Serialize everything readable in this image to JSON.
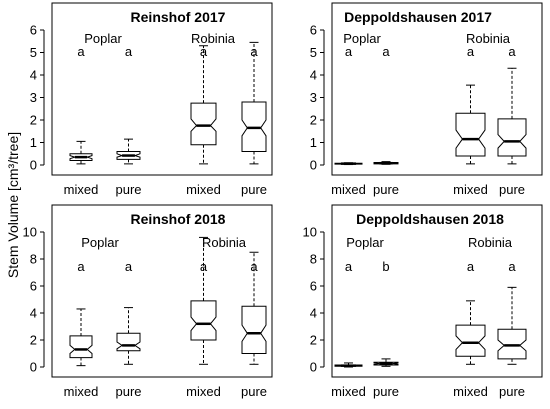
{
  "figure": {
    "ylabel": "Stem Volume [cm³/tree]"
  },
  "chart_data": [
    {
      "type": "box",
      "title": "Reinshof 2017",
      "ylabel": "Stem Volume [cm³/tree]",
      "ylim": [
        0,
        6
      ],
      "yticks": [
        "0",
        "1",
        "2",
        "3",
        "4",
        "5",
        "6"
      ],
      "group_labels": [
        "Poplar",
        "Robinia"
      ],
      "categories": [
        "mixed",
        "pure",
        "mixed",
        "pure"
      ],
      "series": [
        {
          "group": "Poplar",
          "category": "mixed",
          "whisker_low": 0.05,
          "q1": 0.2,
          "median": 0.35,
          "q3": 0.5,
          "whisker_high": 1.05,
          "notch_low": 0.28,
          "notch_high": 0.42,
          "letter": "a"
        },
        {
          "group": "Poplar",
          "category": "pure",
          "whisker_low": 0.05,
          "q1": 0.25,
          "median": 0.42,
          "q3": 0.6,
          "whisker_high": 1.15,
          "notch_low": 0.35,
          "notch_high": 0.5,
          "letter": "a"
        },
        {
          "group": "Robinia",
          "category": "mixed",
          "whisker_low": 0.05,
          "q1": 0.9,
          "median": 1.75,
          "q3": 2.75,
          "whisker_high": 5.3,
          "notch_low": 1.5,
          "notch_high": 2.05,
          "letter": "a"
        },
        {
          "group": "Robinia",
          "category": "pure",
          "whisker_low": 0.05,
          "q1": 0.6,
          "median": 1.65,
          "q3": 2.8,
          "whisker_high": 5.45,
          "notch_low": 1.3,
          "notch_high": 2.0,
          "letter": "a"
        }
      ]
    },
    {
      "type": "box",
      "title": "Deppoldshausen 2017",
      "ylim": [
        0,
        6
      ],
      "yticks": [
        "0",
        "1",
        "2",
        "3",
        "4",
        "5",
        "6"
      ],
      "group_labels": [
        "Poplar",
        "Robinia"
      ],
      "categories": [
        "mixed",
        "pure",
        "mixed",
        "pure"
      ],
      "series": [
        {
          "group": "Poplar",
          "category": "mixed",
          "whisker_low": 0.02,
          "q1": 0.04,
          "median": 0.06,
          "q3": 0.08,
          "whisker_high": 0.1,
          "notch_low": 0.05,
          "notch_high": 0.07,
          "letter": "a"
        },
        {
          "group": "Poplar",
          "category": "pure",
          "whisker_low": 0.03,
          "q1": 0.05,
          "median": 0.08,
          "q3": 0.11,
          "whisker_high": 0.15,
          "notch_low": 0.06,
          "notch_high": 0.1,
          "letter": "a"
        },
        {
          "group": "Robinia",
          "category": "mixed",
          "whisker_low": 0.05,
          "q1": 0.4,
          "median": 1.15,
          "q3": 2.3,
          "whisker_high": 3.55,
          "notch_low": 0.75,
          "notch_high": 1.55,
          "letter": "a"
        },
        {
          "group": "Robinia",
          "category": "pure",
          "whisker_low": 0.05,
          "q1": 0.4,
          "median": 1.05,
          "q3": 2.05,
          "whisker_high": 4.3,
          "notch_low": 0.75,
          "notch_high": 1.35,
          "letter": "a"
        }
      ]
    },
    {
      "type": "box",
      "title": "Reinshof 2018",
      "ylim": [
        0,
        10
      ],
      "yticks": [
        "0",
        "2",
        "4",
        "6",
        "8",
        "10"
      ],
      "group_labels": [
        "Poplar",
        "Robinia"
      ],
      "categories": [
        "mixed",
        "pure",
        "mixed",
        "pure"
      ],
      "series": [
        {
          "group": "Poplar",
          "category": "mixed",
          "whisker_low": 0.1,
          "q1": 0.7,
          "median": 1.3,
          "q3": 2.3,
          "whisker_high": 4.3,
          "notch_low": 1.0,
          "notch_high": 1.6,
          "letter": "a"
        },
        {
          "group": "Poplar",
          "category": "pure",
          "whisker_low": 0.2,
          "q1": 1.2,
          "median": 1.6,
          "q3": 2.5,
          "whisker_high": 4.4,
          "notch_low": 1.35,
          "notch_high": 1.85,
          "letter": "a"
        },
        {
          "group": "Robinia",
          "category": "mixed",
          "whisker_low": 0.2,
          "q1": 2.0,
          "median": 3.2,
          "q3": 4.9,
          "whisker_high": 9.6,
          "notch_low": 2.7,
          "notch_high": 3.7,
          "letter": "a"
        },
        {
          "group": "Robinia",
          "category": "pure",
          "whisker_low": 0.2,
          "q1": 1.0,
          "median": 2.5,
          "q3": 4.5,
          "whisker_high": 8.5,
          "notch_low": 1.9,
          "notch_high": 3.1,
          "letter": "a"
        }
      ]
    },
    {
      "type": "box",
      "title": "Deppoldshausen 2018",
      "ylim": [
        0,
        10
      ],
      "yticks": [
        "0",
        "2",
        "4",
        "6",
        "8",
        "10"
      ],
      "group_labels": [
        "Poplar",
        "Robinia"
      ],
      "categories": [
        "mixed",
        "pure",
        "mixed",
        "pure"
      ],
      "series": [
        {
          "group": "Poplar",
          "category": "mixed",
          "whisker_low": 0.0,
          "q1": 0.05,
          "median": 0.1,
          "q3": 0.15,
          "whisker_high": 0.3,
          "notch_low": 0.08,
          "notch_high": 0.12,
          "letter": "a"
        },
        {
          "group": "Poplar",
          "category": "pure",
          "whisker_low": 0.05,
          "q1": 0.15,
          "median": 0.25,
          "q3": 0.35,
          "whisker_high": 0.6,
          "notch_low": 0.2,
          "notch_high": 0.3,
          "letter": "b"
        },
        {
          "group": "Robinia",
          "category": "mixed",
          "whisker_low": 0.2,
          "q1": 0.8,
          "median": 1.8,
          "q3": 3.1,
          "whisker_high": 4.9,
          "notch_low": 1.3,
          "notch_high": 2.3,
          "letter": "a"
        },
        {
          "group": "Robinia",
          "category": "pure",
          "whisker_low": 0.2,
          "q1": 0.6,
          "median": 1.6,
          "q3": 2.8,
          "whisker_high": 5.9,
          "notch_low": 1.2,
          "notch_high": 2.0,
          "letter": "a"
        }
      ]
    }
  ]
}
